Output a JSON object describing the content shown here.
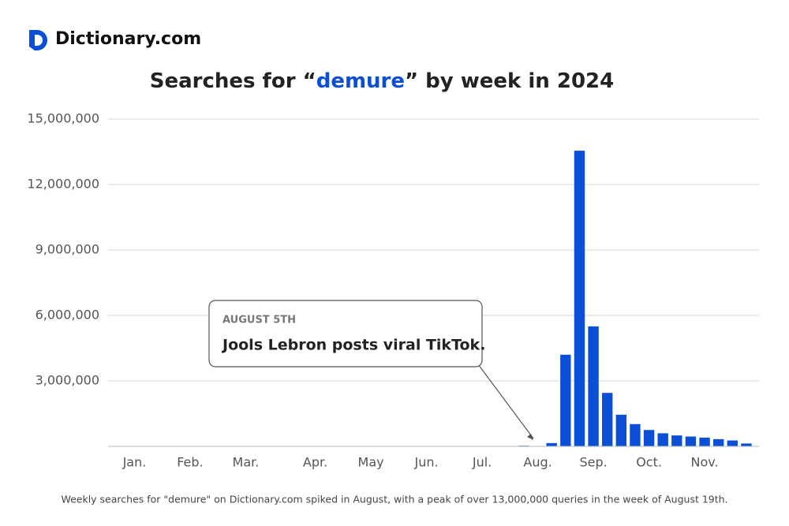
{
  "brand": "Dictionary.com",
  "chart_data": {
    "type": "bar",
    "title": {
      "before": "Searches for “",
      "keyword": "demure",
      "after": "” by week in 2024"
    },
    "categories": [
      null,
      "Jan.",
      null,
      null,
      null,
      "Feb.",
      null,
      null,
      null,
      "Mar.",
      null,
      null,
      null,
      null,
      "Apr.",
      null,
      null,
      null,
      "May",
      null,
      null,
      null,
      "Jun.",
      null,
      null,
      null,
      "Jul.",
      null,
      null,
      null,
      "Aug.",
      null,
      null,
      null,
      "Sep.",
      null,
      null,
      null,
      "Oct.",
      null,
      null,
      null,
      "Nov.",
      null,
      null,
      null
    ],
    "values": [
      0,
      0,
      0,
      0,
      0,
      0,
      0,
      0,
      0,
      0,
      0,
      0,
      0,
      0,
      0,
      0,
      0,
      0,
      0,
      0,
      0,
      0,
      0,
      0,
      0,
      0,
      0,
      0,
      0,
      30000,
      0,
      150000,
      4200000,
      13550000,
      5500000,
      2450000,
      1450000,
      1020000,
      750000,
      600000,
      500000,
      450000,
      400000,
      330000,
      270000,
      130000
    ],
    "color": "#0a4fd6",
    "ylim": [
      0,
      15000000
    ],
    "yticks": [
      {
        "value": 3000000,
        "label": "3,000,000"
      },
      {
        "value": 6000000,
        "label": "6,000,000"
      },
      {
        "value": 9000000,
        "label": "9,000,000"
      },
      {
        "value": 12000000,
        "label": "12,000,000"
      },
      {
        "value": 15000000,
        "label": "15,000,000"
      }
    ],
    "grid": true,
    "annotation": {
      "date": "AUGUST 5TH",
      "text": "Jools Lebron posts viral TikTok."
    },
    "caption": "Weekly searches for \"demure\" on Dictionary.com spiked in August, with a peak of over 13,000,000 queries in the week of August 19th."
  }
}
